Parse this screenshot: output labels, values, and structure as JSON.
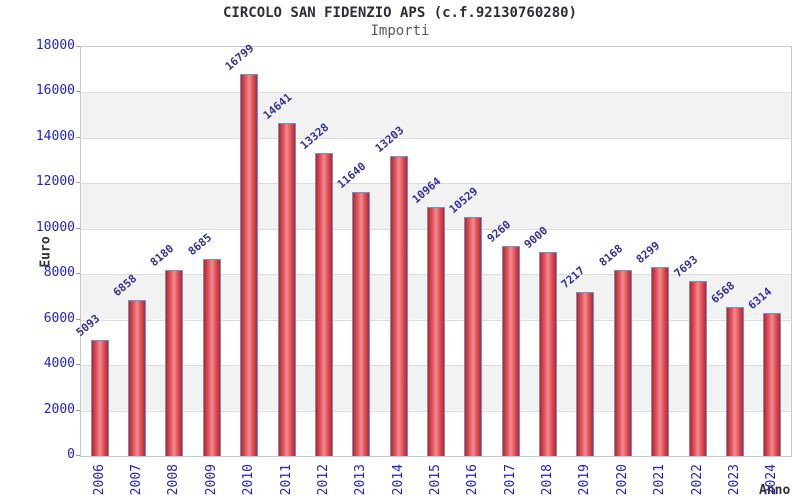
{
  "chart_data": {
    "type": "bar",
    "title": "CIRCOLO SAN FIDENZIO APS (c.f.92130760280)",
    "subtitle": "Importi",
    "xlabel": "Anno",
    "ylabel": "Euro",
    "categories": [
      "2006",
      "2007",
      "2008",
      "2009",
      "2010",
      "2011",
      "2012",
      "2013",
      "2014",
      "2015",
      "2016",
      "2017",
      "2018",
      "2019",
      "2020",
      "2021",
      "2022",
      "2023",
      "2024"
    ],
    "values": [
      5093,
      6858,
      8180,
      8685,
      16799,
      14641,
      13328,
      11640,
      13203,
      10964,
      10529,
      9260,
      9000,
      7217,
      8168,
      8299,
      7693,
      6568,
      6314
    ],
    "ylim": [
      0,
      18000
    ],
    "ytick_step": 2000,
    "grid": true,
    "legend": null,
    "bar_value_labels_rotated": true,
    "colors": {
      "bar_edge": "#c3202c",
      "bar_side": "#e05a62",
      "bar_mid": "#ef8d8d",
      "bar_border": "#5c9ccc",
      "tick_label": "#2222cc",
      "value_label": "#333399",
      "axis_title": "#333333",
      "title": "#2e2e3a",
      "subtitle": "#5a5a5a",
      "band": "#f2f2f2",
      "gridline": "#dcdcdc",
      "plot_border": "#c9c9c9",
      "background": "#ffffff"
    }
  }
}
